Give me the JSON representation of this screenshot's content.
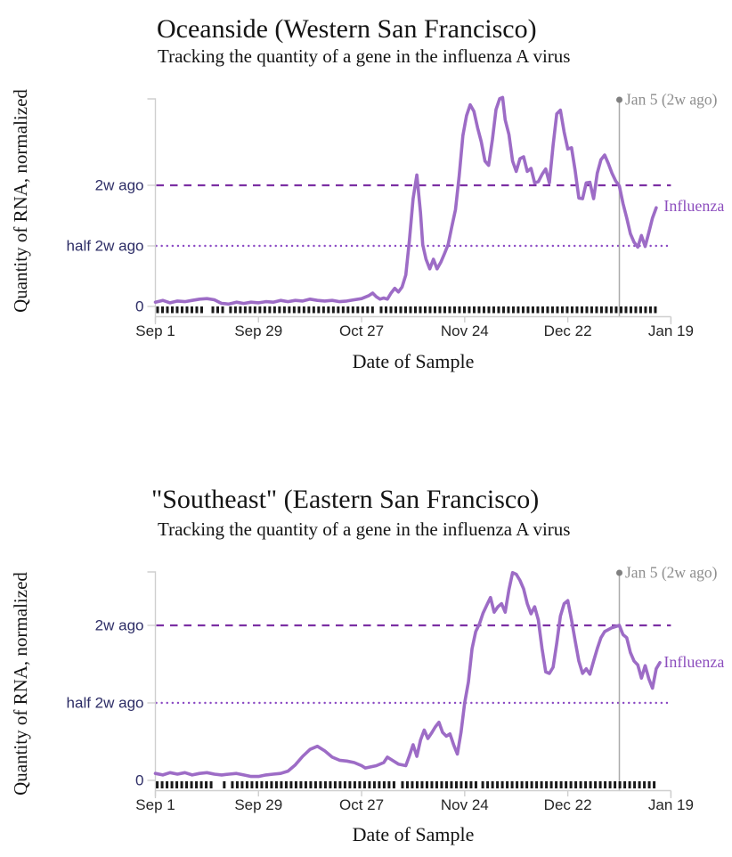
{
  "colors": {
    "line": "#9d6cc6",
    "dashed_reference": "#7b2fa3",
    "dotted_reference": "#8b4ac4",
    "axis": "#cfcfcf",
    "y_tick_label": "#2d2d66",
    "x_tick_label": "#262626",
    "title_text": "#141414",
    "event_line": "#ababab",
    "event_dot": "#808080",
    "event_text": "#8e8e8e",
    "series_label": "#8d4fbe",
    "rug": "#1a1a1a"
  },
  "chart_data": [
    {
      "type": "line",
      "title": "Oceanside (Western San Francisco)",
      "subtitle": "Tracking the quantity of a gene in the influenza A virus",
      "xlabel": "Date of Sample",
      "ylabel": "Quantity of RNA, normalized",
      "series_name": "Influenza",
      "x_unit": "days since Sep 1",
      "xlim": [
        0,
        140
      ],
      "ylim": [
        0,
        3.43
      ],
      "grid": false,
      "legend": "inline right label",
      "x_ticks": [
        {
          "day": 0,
          "label": "Sep 1"
        },
        {
          "day": 28,
          "label": "Sep 29"
        },
        {
          "day": 56,
          "label": "Oct 27"
        },
        {
          "day": 84,
          "label": "Nov 24"
        },
        {
          "day": 112,
          "label": "Dec 22"
        },
        {
          "day": 140,
          "label": "Jan 19"
        }
      ],
      "y_ticks": [
        {
          "value": 0,
          "label": "0"
        },
        {
          "value": 1,
          "label": "half 2w ago"
        },
        {
          "value": 2,
          "label": "2w ago"
        }
      ],
      "y_references": [
        {
          "value": 2,
          "style": "dashed",
          "label": "2w ago"
        },
        {
          "value": 1,
          "style": "dotted",
          "label": "half 2w ago"
        }
      ],
      "event_line": {
        "day": 126,
        "label": "Jan 5 (2w ago)"
      },
      "rug_segments_days": [
        [
          0.6,
          13.7
        ],
        [
          15.6,
          18.5
        ],
        [
          20.4,
          59.4
        ],
        [
          61.3,
          136.5
        ]
      ],
      "points_day_value": [
        [
          0,
          0.07
        ],
        [
          2,
          0.1
        ],
        [
          4,
          0.06
        ],
        [
          6,
          0.09
        ],
        [
          8,
          0.08
        ],
        [
          10,
          0.1
        ],
        [
          12,
          0.12
        ],
        [
          14,
          0.13
        ],
        [
          16,
          0.11
        ],
        [
          18,
          0.05
        ],
        [
          20,
          0.04
        ],
        [
          22,
          0.07
        ],
        [
          24,
          0.05
        ],
        [
          26,
          0.07
        ],
        [
          28,
          0.06
        ],
        [
          30,
          0.08
        ],
        [
          32,
          0.07
        ],
        [
          34,
          0.1
        ],
        [
          36,
          0.08
        ],
        [
          38,
          0.1
        ],
        [
          40,
          0.09
        ],
        [
          42,
          0.12
        ],
        [
          44,
          0.1
        ],
        [
          46,
          0.09
        ],
        [
          48,
          0.1
        ],
        [
          50,
          0.08
        ],
        [
          52,
          0.09
        ],
        [
          54,
          0.11
        ],
        [
          56,
          0.13
        ],
        [
          58,
          0.18
        ],
        [
          59,
          0.22
        ],
        [
          60,
          0.16
        ],
        [
          61,
          0.12
        ],
        [
          62,
          0.14
        ],
        [
          63,
          0.12
        ],
        [
          64,
          0.22
        ],
        [
          65,
          0.3
        ],
        [
          66,
          0.24
        ],
        [
          67,
          0.32
        ],
        [
          68,
          0.52
        ],
        [
          69,
          1.1
        ],
        [
          70,
          1.78
        ],
        [
          71,
          2.17
        ],
        [
          72,
          1.55
        ],
        [
          72.6,
          1.02
        ],
        [
          73.5,
          0.78
        ],
        [
          74.5,
          0.62
        ],
        [
          75.5,
          0.78
        ],
        [
          76.5,
          0.62
        ],
        [
          77.5,
          0.73
        ],
        [
          78.5,
          0.87
        ],
        [
          79.5,
          1.02
        ],
        [
          80.5,
          1.32
        ],
        [
          81.5,
          1.6
        ],
        [
          82.5,
          2.15
        ],
        [
          83.5,
          2.82
        ],
        [
          84.5,
          3.15
        ],
        [
          85.5,
          3.33
        ],
        [
          86.5,
          3.22
        ],
        [
          87.5,
          2.95
        ],
        [
          88.5,
          2.72
        ],
        [
          89.5,
          2.4
        ],
        [
          90.5,
          2.33
        ],
        [
          91.5,
          2.75
        ],
        [
          92.5,
          3.25
        ],
        [
          93.5,
          3.43
        ],
        [
          94.3,
          3.45
        ],
        [
          95,
          3.08
        ],
        [
          96,
          2.84
        ],
        [
          97,
          2.4
        ],
        [
          98,
          2.23
        ],
        [
          99,
          2.44
        ],
        [
          100,
          2.47
        ],
        [
          101,
          2.23
        ],
        [
          102,
          2.28
        ],
        [
          103,
          2.04
        ],
        [
          104,
          2.06
        ],
        [
          105,
          2.18
        ],
        [
          106,
          2.27
        ],
        [
          107,
          2.04
        ],
        [
          108,
          2.66
        ],
        [
          109,
          3.18
        ],
        [
          110,
          3.24
        ],
        [
          111,
          2.88
        ],
        [
          112,
          2.6
        ],
        [
          113,
          2.62
        ],
        [
          114,
          2.24
        ],
        [
          115,
          1.79
        ],
        [
          116,
          1.78
        ],
        [
          117,
          2.04
        ],
        [
          118,
          2.05
        ],
        [
          119,
          1.78
        ],
        [
          120,
          2.2
        ],
        [
          121,
          2.42
        ],
        [
          122,
          2.5
        ],
        [
          123,
          2.36
        ],
        [
          124,
          2.2
        ],
        [
          125,
          2.07
        ],
        [
          126,
          1.99
        ],
        [
          127,
          1.7
        ],
        [
          128,
          1.46
        ],
        [
          129,
          1.2
        ],
        [
          130,
          1.06
        ],
        [
          131,
          0.98
        ],
        [
          132,
          1.17
        ],
        [
          133,
          0.99
        ],
        [
          134,
          1.22
        ],
        [
          135,
          1.46
        ],
        [
          136,
          1.63
        ]
      ]
    },
    {
      "type": "line",
      "title": "\"Southeast\" (Eastern San Francisco)",
      "subtitle": "Tracking the quantity of a gene in the influenza A virus",
      "xlabel": "Date of Sample",
      "ylabel": "Quantity of RNA, normalized",
      "series_name": "Influenza",
      "x_unit": "days since Sep 1",
      "xlim": [
        0,
        140
      ],
      "ylim": [
        0,
        2.69
      ],
      "grid": false,
      "legend": "inline right label",
      "x_ticks": [
        {
          "day": 0,
          "label": "Sep 1"
        },
        {
          "day": 28,
          "label": "Sep 29"
        },
        {
          "day": 56,
          "label": "Oct 27"
        },
        {
          "day": 84,
          "label": "Nov 24"
        },
        {
          "day": 112,
          "label": "Dec 22"
        },
        {
          "day": 140,
          "label": "Jan 19"
        }
      ],
      "y_ticks": [
        {
          "value": 0,
          "label": "0"
        },
        {
          "value": 1,
          "label": "half 2w ago"
        },
        {
          "value": 2,
          "label": "2w ago"
        }
      ],
      "y_references": [
        {
          "value": 2,
          "style": "dashed",
          "label": "2w ago"
        },
        {
          "value": 1,
          "style": "dotted",
          "label": "half 2w ago"
        }
      ],
      "event_line": {
        "day": 126,
        "label": "Jan 5 (2w ago)"
      },
      "rug_segments_days": [
        [
          0.5,
          16.3
        ],
        [
          18.7,
          20.0
        ],
        [
          20.9,
          65.7
        ],
        [
          67.1,
          87.4
        ],
        [
          88.9,
          136.5
        ]
      ],
      "points_day_value": [
        [
          0,
          0.09
        ],
        [
          2,
          0.07
        ],
        [
          4,
          0.1
        ],
        [
          6,
          0.08
        ],
        [
          8,
          0.1
        ],
        [
          10,
          0.07
        ],
        [
          12,
          0.09
        ],
        [
          14,
          0.1
        ],
        [
          16,
          0.08
        ],
        [
          18,
          0.07
        ],
        [
          20,
          0.08
        ],
        [
          22,
          0.09
        ],
        [
          24,
          0.07
        ],
        [
          26,
          0.05
        ],
        [
          28,
          0.05
        ],
        [
          30,
          0.07
        ],
        [
          32,
          0.08
        ],
        [
          34,
          0.09
        ],
        [
          36,
          0.12
        ],
        [
          38,
          0.2
        ],
        [
          40,
          0.31
        ],
        [
          42,
          0.4
        ],
        [
          44,
          0.44
        ],
        [
          46,
          0.38
        ],
        [
          48,
          0.3
        ],
        [
          50,
          0.26
        ],
        [
          52,
          0.25
        ],
        [
          54,
          0.23
        ],
        [
          56,
          0.19
        ],
        [
          57,
          0.16
        ],
        [
          58,
          0.17
        ],
        [
          60,
          0.19
        ],
        [
          62,
          0.23
        ],
        [
          63,
          0.3
        ],
        [
          64,
          0.27
        ],
        [
          66,
          0.21
        ],
        [
          68,
          0.19
        ],
        [
          69,
          0.32
        ],
        [
          70,
          0.46
        ],
        [
          71,
          0.31
        ],
        [
          72,
          0.52
        ],
        [
          73,
          0.65
        ],
        [
          74,
          0.54
        ],
        [
          75,
          0.61
        ],
        [
          76,
          0.69
        ],
        [
          77,
          0.75
        ],
        [
          78,
          0.62
        ],
        [
          79,
          0.57
        ],
        [
          80,
          0.6
        ],
        [
          81,
          0.46
        ],
        [
          82,
          0.34
        ],
        [
          83,
          0.62
        ],
        [
          84,
          1.0
        ],
        [
          85,
          1.27
        ],
        [
          86,
          1.7
        ],
        [
          87,
          1.92
        ],
        [
          88,
          2.02
        ],
        [
          89,
          2.16
        ],
        [
          90,
          2.26
        ],
        [
          91,
          2.36
        ],
        [
          92,
          2.17
        ],
        [
          93,
          2.24
        ],
        [
          94,
          2.28
        ],
        [
          95,
          2.17
        ],
        [
          96,
          2.46
        ],
        [
          97,
          2.68
        ],
        [
          98,
          2.66
        ],
        [
          99,
          2.58
        ],
        [
          100,
          2.47
        ],
        [
          101,
          2.28
        ],
        [
          102,
          2.15
        ],
        [
          103,
          2.24
        ],
        [
          104,
          2.07
        ],
        [
          105,
          1.7
        ],
        [
          106,
          1.4
        ],
        [
          107,
          1.38
        ],
        [
          108,
          1.46
        ],
        [
          109,
          1.77
        ],
        [
          110,
          2.12
        ],
        [
          111,
          2.28
        ],
        [
          112,
          2.32
        ],
        [
          113,
          2.07
        ],
        [
          114,
          1.8
        ],
        [
          115,
          1.54
        ],
        [
          116,
          1.38
        ],
        [
          117,
          1.44
        ],
        [
          118,
          1.37
        ],
        [
          119,
          1.54
        ],
        [
          120,
          1.7
        ],
        [
          121,
          1.84
        ],
        [
          122,
          1.92
        ],
        [
          124,
          1.97
        ],
        [
          126,
          2.0
        ],
        [
          127,
          1.88
        ],
        [
          128,
          1.84
        ],
        [
          129,
          1.65
        ],
        [
          130,
          1.54
        ],
        [
          131,
          1.49
        ],
        [
          132,
          1.32
        ],
        [
          133,
          1.48
        ],
        [
          134,
          1.31
        ],
        [
          135,
          1.19
        ],
        [
          136,
          1.44
        ],
        [
          137,
          1.52
        ]
      ]
    }
  ]
}
